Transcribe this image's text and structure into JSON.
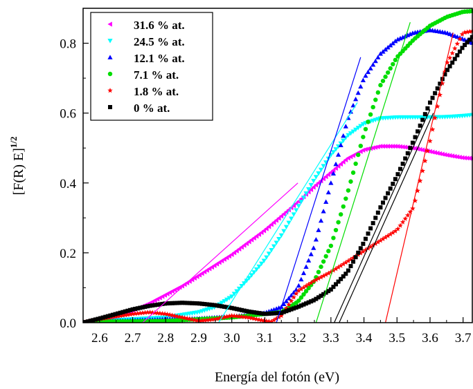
{
  "chart_data": {
    "type": "scatter",
    "title": "",
    "xlabel": "Energía del fotón (eV)",
    "ylabel_main": "[F(R) E]",
    "ylabel_sup": "1/2",
    "xlim": [
      2.55,
      3.73
    ],
    "ylim": [
      0.0,
      0.9
    ],
    "xticks": [
      "2.6",
      "2.7",
      "2.8",
      "2.9",
      "3.0",
      "3.1",
      "3.2",
      "3.3",
      "3.4",
      "3.5",
      "3.6",
      "3.7"
    ],
    "xtick_values": [
      2.6,
      2.7,
      2.8,
      2.9,
      3.0,
      3.1,
      3.2,
      3.3,
      3.4,
      3.5,
      3.6,
      3.7
    ],
    "yticks": [
      "0.0",
      "0.2",
      "0.4",
      "0.6",
      "0.8"
    ],
    "ytick_values": [
      0.0,
      0.2,
      0.4,
      0.6,
      0.8
    ],
    "grid": false,
    "legend_position": "top-left",
    "series": [
      {
        "name": "31.6 % at.",
        "color": "#ff00ff",
        "marker": "triangle-left",
        "x": [
          2.55,
          2.6,
          2.65,
          2.7,
          2.75,
          2.8,
          2.85,
          2.9,
          2.95,
          3.0,
          3.05,
          3.1,
          3.15,
          3.2,
          3.25,
          3.3,
          3.35,
          3.4,
          3.45,
          3.5,
          3.55,
          3.6,
          3.65,
          3.7,
          3.73
        ],
        "y": [
          0.0,
          0.008,
          0.02,
          0.035,
          0.055,
          0.08,
          0.105,
          0.135,
          0.165,
          0.195,
          0.23,
          0.265,
          0.305,
          0.345,
          0.39,
          0.43,
          0.47,
          0.495,
          0.505,
          0.505,
          0.5,
          0.49,
          0.48,
          0.472,
          0.47
        ]
      },
      {
        "name": "24.5 % at.",
        "color": "#00ffff",
        "marker": "triangle-down",
        "x": [
          2.55,
          2.6,
          2.7,
          2.8,
          2.9,
          2.95,
          3.0,
          3.05,
          3.1,
          3.15,
          3.2,
          3.25,
          3.3,
          3.35,
          3.4,
          3.45,
          3.5,
          3.55,
          3.6,
          3.65,
          3.7,
          3.73
        ],
        "y": [
          0.0,
          0.005,
          0.01,
          0.015,
          0.03,
          0.045,
          0.075,
          0.125,
          0.18,
          0.25,
          0.33,
          0.41,
          0.48,
          0.535,
          0.57,
          0.585,
          0.588,
          0.588,
          0.588,
          0.589,
          0.592,
          0.595
        ]
      },
      {
        "name": "12.1 % at.",
        "color": "#0000ff",
        "marker": "triangle-up",
        "x": [
          2.55,
          2.6,
          2.7,
          2.8,
          2.9,
          3.0,
          3.05,
          3.1,
          3.15,
          3.2,
          3.25,
          3.3,
          3.35,
          3.4,
          3.45,
          3.5,
          3.55,
          3.6,
          3.65,
          3.7,
          3.73
        ],
        "y": [
          0.0,
          0.004,
          0.007,
          0.01,
          0.012,
          0.018,
          0.022,
          0.028,
          0.045,
          0.1,
          0.22,
          0.4,
          0.58,
          0.7,
          0.77,
          0.81,
          0.83,
          0.838,
          0.83,
          0.812,
          0.8
        ]
      },
      {
        "name": "7.1 % at.",
        "color": "#00dd00",
        "marker": "circle",
        "x": [
          2.55,
          2.6,
          2.7,
          2.8,
          2.9,
          3.0,
          3.1,
          3.15,
          3.2,
          3.25,
          3.3,
          3.35,
          3.4,
          3.45,
          3.5,
          3.55,
          3.6,
          3.65,
          3.7,
          3.73
        ],
        "y": [
          0.0,
          0.003,
          0.004,
          0.005,
          0.01,
          0.015,
          0.025,
          0.03,
          0.06,
          0.12,
          0.22,
          0.37,
          0.54,
          0.68,
          0.76,
          0.81,
          0.85,
          0.875,
          0.89,
          0.892
        ]
      },
      {
        "name": "1.8 % at.",
        "color": "#ff0000",
        "marker": "star",
        "x": [
          2.55,
          2.6,
          2.7,
          2.75,
          2.8,
          2.85,
          2.9,
          2.95,
          3.0,
          3.05,
          3.1,
          3.12,
          3.15,
          3.2,
          3.25,
          3.3,
          3.35,
          3.4,
          3.45,
          3.5,
          3.55,
          3.6,
          3.65,
          3.7,
          3.73
        ],
        "y": [
          0.0,
          0.01,
          0.025,
          0.03,
          0.025,
          0.015,
          0.005,
          0.01,
          0.02,
          0.015,
          0.005,
          0.003,
          0.02,
          0.09,
          0.12,
          0.145,
          0.175,
          0.205,
          0.235,
          0.265,
          0.33,
          0.52,
          0.74,
          0.83,
          0.835
        ]
      },
      {
        "name": "0 % at.",
        "color": "#000000",
        "marker": "square",
        "x": [
          2.55,
          2.6,
          2.65,
          2.7,
          2.75,
          2.8,
          2.85,
          2.9,
          2.95,
          3.0,
          3.05,
          3.1,
          3.15,
          3.2,
          3.25,
          3.3,
          3.35,
          3.4,
          3.45,
          3.5,
          3.55,
          3.6,
          3.65,
          3.7,
          3.73
        ],
        "y": [
          0.0,
          0.012,
          0.025,
          0.038,
          0.048,
          0.055,
          0.057,
          0.055,
          0.05,
          0.042,
          0.032,
          0.025,
          0.028,
          0.045,
          0.065,
          0.095,
          0.145,
          0.23,
          0.33,
          0.42,
          0.52,
          0.63,
          0.72,
          0.79,
          0.82
        ]
      }
    ],
    "tangent_lines": [
      {
        "series": "31.6 % at.",
        "color": "#ff00ff",
        "x": [
          2.73,
          3.2
        ],
        "y": [
          0.0,
          0.4
        ]
      },
      {
        "series": "24.5 % at.",
        "color": "#00ffff",
        "x": [
          2.96,
          3.38
        ],
        "y": [
          0.0,
          0.63
        ]
      },
      {
        "series": "12.1 % at.",
        "color": "#0000ff",
        "x": [
          3.135,
          3.39
        ],
        "y": [
          0.0,
          0.76
        ]
      },
      {
        "series": "7.1 % at.",
        "color": "#00dd00",
        "x": [
          3.255,
          3.54
        ],
        "y": [
          0.0,
          0.86
        ]
      },
      {
        "series": "1.8 % at.",
        "color": "#ff0000",
        "x": [
          3.465,
          3.67
        ],
        "y": [
          0.0,
          0.83
        ]
      },
      {
        "series": "0 % at. (a)",
        "color": "#000000",
        "x": [
          3.31,
          3.6
        ],
        "y": [
          0.0,
          0.61
        ]
      },
      {
        "series": "0 % at. (b)",
        "color": "#000000",
        "x": [
          3.325,
          3.61
        ],
        "y": [
          0.0,
          0.6
        ]
      }
    ]
  }
}
